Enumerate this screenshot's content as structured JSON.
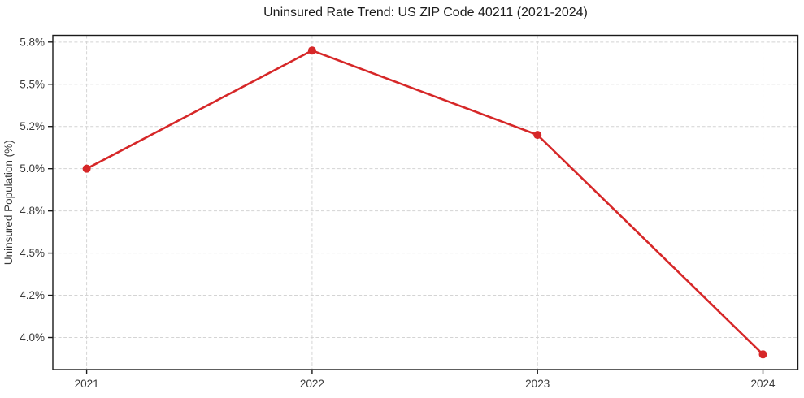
{
  "chart_data": {
    "type": "line",
    "title": "Uninsured Rate Trend: US ZIP Code 40211 (2021-2024)",
    "xlabel": "",
    "ylabel": "Uninsured Population (%)",
    "x": [
      2021,
      2022,
      2023,
      2024
    ],
    "y": [
      5.0,
      5.7,
      5.2,
      3.9
    ],
    "x_tick_labels": [
      "2021",
      "2022",
      "2023",
      "2024"
    ],
    "y_ticks": [
      4.0,
      4.25,
      4.5,
      4.75,
      5.0,
      5.25,
      5.5,
      5.75
    ],
    "y_tick_labels": [
      "4.0%",
      "4.2%",
      "4.5%",
      "4.8%",
      "5.0%",
      "5.2%",
      "5.5%",
      "5.8%"
    ],
    "xlim": [
      2020.85,
      2024.155
    ],
    "ylim": [
      3.81,
      5.79
    ],
    "grid": true,
    "legend": false,
    "colors": {
      "line": "#d62728",
      "marker": "#d62728",
      "grid": "#d4d4d4",
      "spine": "#1a1a1a",
      "tick_text": "#3a3a3a",
      "title_text": "#1b1b1b",
      "background": "#ffffff"
    }
  }
}
